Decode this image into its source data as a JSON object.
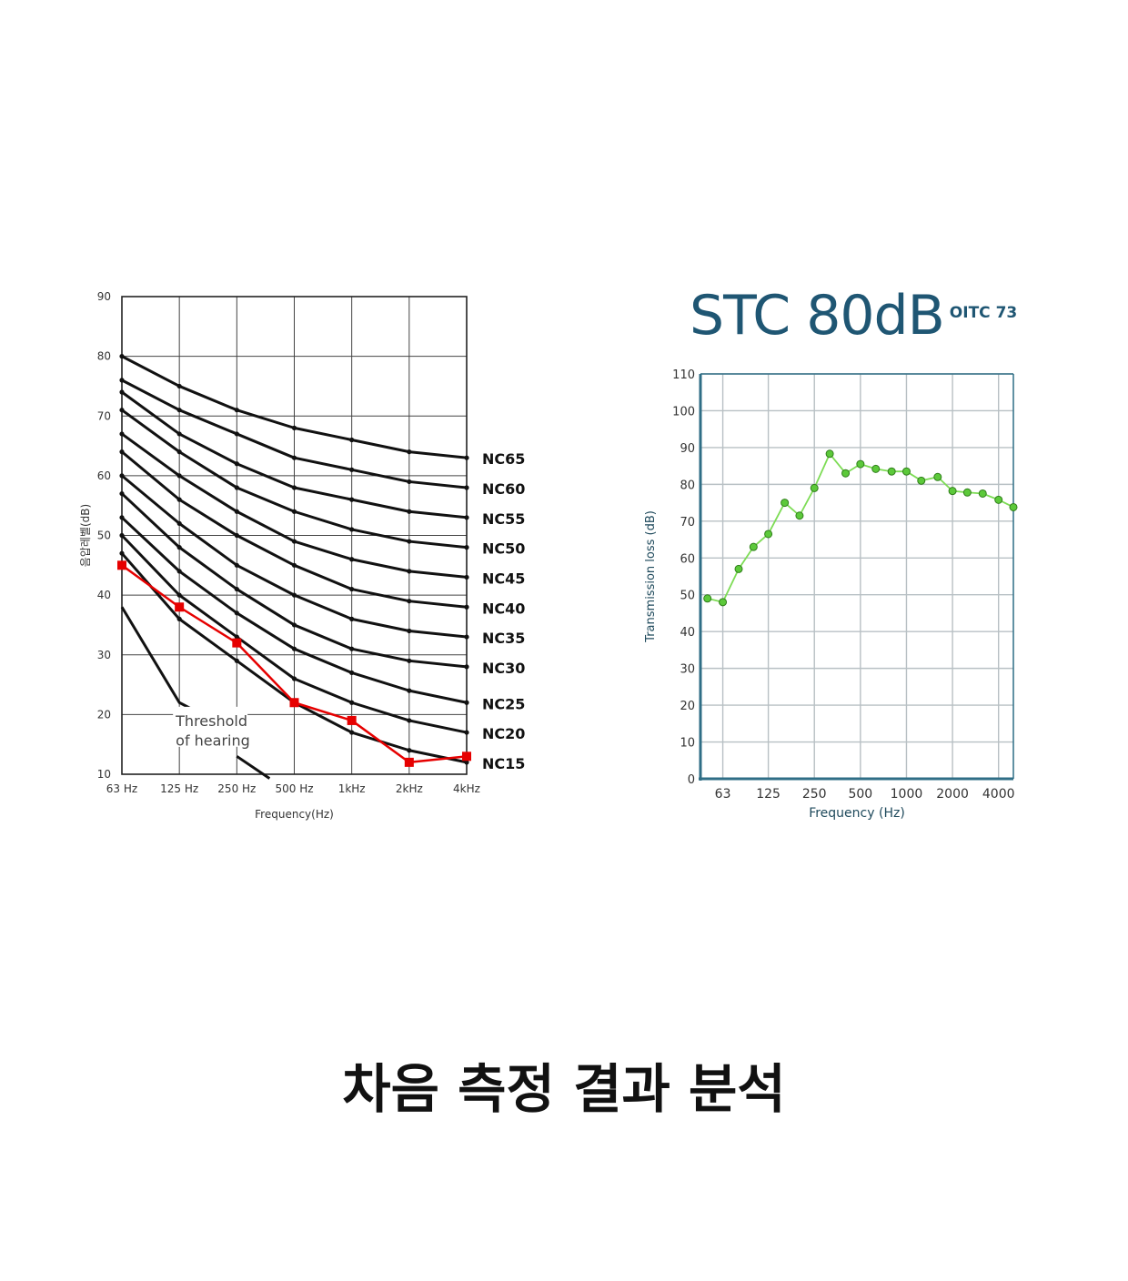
{
  "caption": "차음 측정 결과 분석",
  "chart_data": [
    {
      "type": "line",
      "ylabel": "음압레벨(dB)",
      "xlabel": "Frequency(Hz)",
      "categories": [
        "63 Hz",
        "125 Hz",
        "250 Hz",
        "500 Hz",
        "1kHz",
        "2kHz",
        "4kHz"
      ],
      "ylim": [
        10,
        90
      ],
      "yticks": [
        10,
        20,
        30,
        40,
        50,
        60,
        70,
        80,
        90
      ],
      "grid": true,
      "annotation": [
        "Threshold",
        "of hearing"
      ],
      "nc_color": "#111111",
      "measured_color": "#e60000",
      "series": [
        {
          "name": "NC65",
          "values": [
            80,
            75,
            71,
            68,
            66,
            64,
            63
          ]
        },
        {
          "name": "NC60",
          "values": [
            76,
            71,
            67,
            63,
            61,
            59,
            58
          ]
        },
        {
          "name": "NC55",
          "values": [
            74,
            67,
            62,
            58,
            56,
            54,
            53
          ]
        },
        {
          "name": "NC50",
          "values": [
            71,
            64,
            58,
            54,
            51,
            49,
            48
          ]
        },
        {
          "name": "NC45",
          "values": [
            67,
            60,
            54,
            49,
            46,
            44,
            43
          ]
        },
        {
          "name": "NC40",
          "values": [
            64,
            56,
            50,
            45,
            41,
            39,
            38
          ]
        },
        {
          "name": "NC35",
          "values": [
            60,
            52,
            45,
            40,
            36,
            34,
            33
          ]
        },
        {
          "name": "NC30",
          "values": [
            57,
            48,
            41,
            35,
            31,
            29,
            28
          ]
        },
        {
          "name": "NC25",
          "values": [
            53,
            44,
            37,
            31,
            27,
            24,
            22
          ]
        },
        {
          "name": "NC20",
          "values": [
            50,
            40,
            33,
            26,
            22,
            19,
            17
          ]
        },
        {
          "name": "NC15",
          "values": [
            47,
            36,
            29,
            22,
            17,
            14,
            12
          ]
        },
        {
          "values": [
            45,
            38,
            32,
            22,
            19,
            12,
            13
          ]
        }
      ],
      "threshold_values": [
        38,
        22,
        13,
        9
      ]
    },
    {
      "type": "line",
      "title": "STC 80dB",
      "subtitle": "OITC 73",
      "xlabel": "Frequency (Hz)",
      "ylabel": "Transmission loss (dB)",
      "xscale": "log",
      "xticks": [
        63,
        125,
        250,
        500,
        1000,
        2000,
        4000
      ],
      "xlim": [
        45,
        5000
      ],
      "ylim": [
        0,
        110
      ],
      "yticks": [
        0,
        10,
        20,
        30,
        40,
        50,
        60,
        70,
        80,
        90,
        100,
        110
      ],
      "grid": true,
      "line_color": "#7ddc55",
      "marker_color": "#5cc93a",
      "axis_color": "#2f6e86",
      "series": [
        {
          "x": [
            50,
            63,
            80,
            100,
            125,
            160,
            200,
            250,
            315,
            400,
            500,
            630,
            800,
            1000,
            1250,
            1600,
            2000,
            2500,
            3150,
            4000,
            5000
          ],
          "values": [
            49,
            48,
            57,
            63,
            66.5,
            75,
            71.5,
            79,
            88.3,
            83,
            85.5,
            84.2,
            83.5,
            83.5,
            81,
            82,
            78.2,
            77.8,
            77.5,
            75.8,
            73.8
          ]
        }
      ]
    }
  ]
}
